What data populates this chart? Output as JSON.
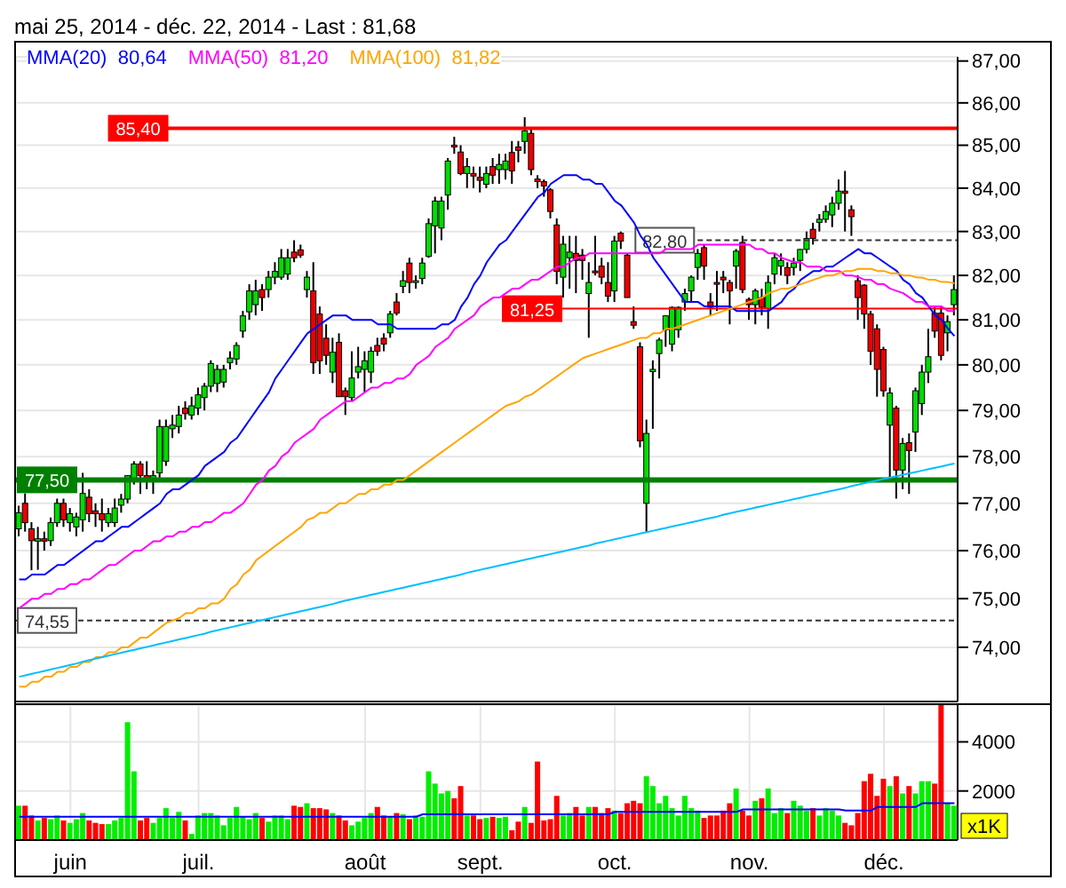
{
  "chart_data": [
    {
      "type": "candlestick",
      "title": "mai 25, 2014 - déc. 22, 2014 - Last : 81,68",
      "categories": [
        null,
        null,
        null,
        null,
        null,
        null,
        null,
        null,
        null,
        null,
        null,
        null,
        null,
        null,
        null,
        null,
        null,
        null,
        null,
        null,
        null,
        null,
        null,
        null,
        null,
        null,
        null,
        null,
        null,
        null,
        null,
        null,
        null,
        null,
        null,
        null,
        null,
        null,
        null,
        null,
        null,
        null,
        null,
        null,
        null,
        null,
        null,
        null,
        null,
        null,
        null,
        null,
        null,
        null,
        null,
        null,
        null,
        null,
        null,
        null,
        null,
        null,
        null,
        null,
        null,
        null,
        null,
        null,
        null,
        null,
        null,
        null,
        null,
        null,
        null,
        null,
        null,
        null,
        null,
        null,
        null,
        null,
        null,
        null,
        null,
        null,
        null,
        null,
        null,
        null,
        null,
        null,
        null,
        null,
        null,
        null,
        null,
        null,
        null,
        null,
        null,
        null,
        null,
        null,
        null,
        null,
        null,
        null,
        null,
        null,
        null,
        null,
        null,
        null,
        null,
        null,
        null,
        null,
        null,
        null,
        null,
        null,
        null,
        null,
        null,
        null,
        null,
        null,
        null,
        null,
        null,
        null,
        null,
        null,
        null,
        null,
        null,
        null,
        null,
        null,
        null,
        null,
        null,
        null,
        null,
        null,
        null
      ],
      "ohlc": [
        [
          76.46,
          76.95,
          76.3,
          76.8
        ],
        [
          77.0,
          77.21,
          76.4,
          76.59
        ],
        [
          76.46,
          76.6,
          75.59,
          76.21
        ],
        [
          76.2,
          76.5,
          75.6,
          76.25
        ],
        [
          76.25,
          76.4,
          76.0,
          76.2
        ],
        [
          76.21,
          76.7,
          76.1,
          76.59
        ],
        [
          76.59,
          77.1,
          76.5,
          77.0
        ],
        [
          77.0,
          77.1,
          76.5,
          76.65
        ],
        [
          76.59,
          76.9,
          76.4,
          76.78
        ],
        [
          76.5,
          76.8,
          76.3,
          76.71
        ],
        [
          76.65,
          77.65,
          76.4,
          77.21
        ],
        [
          77.13,
          77.3,
          76.6,
          76.78
        ],
        [
          76.84,
          77.0,
          76.5,
          76.78
        ],
        [
          76.78,
          77.1,
          76.4,
          76.65
        ],
        [
          76.59,
          76.9,
          76.5,
          76.78
        ],
        [
          76.59,
          77.1,
          76.5,
          76.9
        ],
        [
          76.96,
          77.2,
          76.8,
          77.09
        ],
        [
          77.09,
          77.6,
          77.0,
          77.59
        ],
        [
          77.53,
          77.9,
          77.4,
          77.84
        ],
        [
          77.84,
          77.9,
          77.2,
          77.59
        ],
        [
          77.59,
          77.9,
          77.3,
          77.5
        ],
        [
          77.5,
          77.7,
          77.2,
          77.59
        ],
        [
          77.65,
          78.8,
          77.5,
          78.65
        ],
        [
          77.9,
          78.8,
          77.8,
          78.65
        ],
        [
          78.6,
          78.9,
          78.4,
          78.68
        ],
        [
          78.65,
          79.1,
          78.5,
          78.9
        ],
        [
          79.05,
          79.2,
          78.8,
          78.93
        ],
        [
          78.9,
          79.3,
          78.8,
          79.1
        ],
        [
          79.05,
          79.5,
          78.9,
          79.34
        ],
        [
          79.28,
          79.6,
          79.0,
          79.53
        ],
        [
          79.53,
          80.1,
          79.4,
          80.03
        ],
        [
          79.59,
          80.0,
          79.4,
          79.9
        ],
        [
          79.62,
          80.0,
          79.5,
          79.9
        ],
        [
          80.05,
          80.3,
          79.9,
          80.15
        ],
        [
          80.13,
          80.5,
          80.0,
          80.43
        ],
        [
          80.75,
          81.2,
          80.6,
          81.09
        ],
        [
          81.18,
          81.8,
          81.0,
          81.65
        ],
        [
          81.34,
          81.9,
          81.1,
          81.65
        ],
        [
          81.68,
          81.8,
          81.2,
          81.5
        ],
        [
          81.68,
          82.1,
          81.5,
          81.96
        ],
        [
          81.96,
          82.3,
          81.8,
          82.09
        ],
        [
          81.96,
          82.6,
          81.9,
          82.4
        ],
        [
          82.03,
          82.6,
          81.9,
          82.4
        ],
        [
          82.53,
          82.8,
          82.3,
          82.4
        ],
        [
          82.58,
          82.7,
          82.4,
          82.46
        ],
        [
          81.68,
          82.1,
          81.5,
          81.96
        ],
        [
          81.65,
          82.3,
          79.8,
          80.05
        ],
        [
          81.13,
          81.3,
          79.8,
          80.09
        ],
        [
          80.59,
          80.9,
          80.0,
          80.21
        ],
        [
          79.84,
          80.6,
          79.6,
          80.28
        ],
        [
          80.5,
          80.7,
          79.3,
          79.3
        ],
        [
          79.43,
          79.5,
          78.9,
          79.3
        ],
        [
          79.28,
          80.3,
          79.2,
          79.71
        ],
        [
          79.84,
          80.4,
          79.7,
          79.96
        ],
        [
          79.9,
          80.3,
          79.4,
          80.09
        ],
        [
          79.84,
          80.4,
          79.6,
          80.3
        ],
        [
          80.43,
          80.6,
          80.2,
          80.3
        ],
        [
          80.59,
          80.7,
          80.3,
          80.46
        ],
        [
          80.71,
          81.2,
          80.6,
          81.13
        ],
        [
          81.4,
          81.6,
          81.1,
          81.15
        ],
        [
          81.75,
          82.1,
          81.6,
          81.88
        ],
        [
          82.28,
          82.4,
          81.6,
          81.84
        ],
        [
          81.84,
          82.0,
          81.7,
          81.88
        ],
        [
          81.93,
          82.4,
          81.8,
          82.28
        ],
        [
          82.43,
          83.3,
          82.4,
          83.18
        ],
        [
          83.13,
          83.8,
          82.5,
          83.7
        ],
        [
          83.08,
          83.8,
          82.8,
          83.7
        ],
        [
          83.84,
          84.7,
          83.5,
          84.63
        ],
        [
          85.0,
          85.2,
          84.8,
          84.96
        ],
        [
          84.84,
          85.0,
          84.3,
          84.34
        ],
        [
          84.34,
          84.7,
          84.0,
          84.5
        ],
        [
          84.34,
          84.5,
          84.0,
          84.28
        ],
        [
          84.25,
          84.5,
          83.9,
          84.18
        ],
        [
          84.09,
          84.5,
          84.0,
          84.34
        ],
        [
          84.5,
          84.7,
          84.1,
          84.3
        ],
        [
          84.43,
          84.8,
          84.1,
          84.55
        ],
        [
          84.43,
          84.8,
          84.2,
          84.63
        ],
        [
          84.83,
          85.1,
          84.1,
          84.4
        ],
        [
          84.96,
          85.1,
          84.6,
          84.88
        ],
        [
          85.09,
          85.66,
          84.8,
          85.34
        ],
        [
          85.28,
          85.4,
          84.3,
          84.43
        ],
        [
          84.21,
          84.3,
          84.0,
          84.15
        ],
        [
          84.15,
          84.2,
          83.8,
          84.05
        ],
        [
          83.96,
          84.0,
          83.3,
          83.46
        ],
        [
          83.15,
          83.3,
          81.8,
          82.09
        ],
        [
          81.96,
          82.9,
          81.5,
          82.71
        ],
        [
          82.4,
          82.9,
          81.7,
          82.53
        ],
        [
          82.5,
          82.9,
          81.6,
          82.34
        ],
        [
          82.46,
          82.6,
          81.9,
          82.34
        ],
        [
          81.59,
          82.3,
          80.6,
          81.84
        ],
        [
          82.1,
          82.9,
          82.0,
          82.09
        ],
        [
          82.21,
          82.4,
          81.8,
          81.96
        ],
        [
          81.84,
          82.3,
          81.4,
          81.53
        ],
        [
          81.65,
          82.9,
          81.4,
          82.78
        ],
        [
          82.96,
          83.0,
          82.6,
          82.78
        ],
        [
          82.46,
          82.5,
          81.5,
          81.5
        ],
        [
          80.96,
          81.3,
          80.8,
          80.88
        ],
        [
          80.4,
          80.5,
          78.2,
          78.34
        ],
        [
          77.0,
          78.8,
          76.4,
          78.5
        ],
        [
          79.85,
          80.1,
          78.6,
          79.9
        ],
        [
          80.25,
          80.6,
          79.7,
          80.55
        ],
        [
          80.78,
          81.1,
          80.4,
          81.09
        ],
        [
          80.46,
          81.3,
          80.3,
          81.28
        ],
        [
          80.78,
          81.3,
          80.6,
          81.28
        ],
        [
          81.4,
          81.7,
          81.2,
          81.59
        ],
        [
          81.65,
          82.0,
          81.4,
          81.96
        ],
        [
          82.18,
          82.6,
          81.9,
          82.5
        ],
        [
          82.63,
          82.7,
          81.9,
          82.21
        ],
        [
          81.4,
          81.6,
          81.1,
          81.28
        ],
        [
          81.84,
          82.1,
          81.2,
          81.8
        ],
        [
          81.96,
          82.1,
          81.6,
          81.9
        ],
        [
          81.84,
          81.9,
          80.9,
          81.65
        ],
        [
          82.21,
          82.6,
          81.7,
          82.55
        ],
        [
          82.75,
          82.9,
          81.6,
          81.68
        ],
        [
          81.46,
          81.5,
          81.0,
          81.34
        ],
        [
          81.34,
          81.7,
          80.9,
          81.65
        ],
        [
          81.5,
          81.7,
          81.1,
          81.28
        ],
        [
          81.25,
          82.0,
          80.8,
          81.84
        ],
        [
          82.03,
          82.5,
          81.8,
          82.4
        ],
        [
          82.21,
          82.5,
          82.0,
          82.34
        ],
        [
          82.18,
          82.3,
          81.8,
          82.0
        ],
        [
          82.18,
          82.4,
          82.0,
          82.28
        ],
        [
          82.34,
          82.6,
          82.1,
          82.59
        ],
        [
          82.59,
          83.0,
          82.5,
          82.84
        ],
        [
          83.05,
          83.2,
          82.7,
          82.84
        ],
        [
          83.21,
          83.4,
          83.0,
          83.28
        ],
        [
          83.28,
          83.6,
          83.2,
          83.46
        ],
        [
          83.38,
          83.8,
          83.1,
          83.65
        ],
        [
          83.65,
          84.2,
          83.5,
          83.93
        ],
        [
          83.93,
          84.4,
          83.0,
          83.88
        ],
        [
          83.5,
          83.6,
          82.9,
          83.34
        ],
        [
          81.88,
          82.0,
          81.0,
          81.5
        ],
        [
          81.78,
          81.8,
          80.8,
          81.13
        ],
        [
          81.13,
          81.2,
          80.0,
          80.3
        ],
        [
          80.8,
          80.9,
          79.3,
          79.9
        ],
        [
          80.34,
          80.4,
          79.3,
          79.43
        ],
        [
          78.68,
          79.5,
          77.5,
          79.38
        ],
        [
          79.05,
          79.1,
          77.1,
          77.71
        ],
        [
          77.71,
          78.4,
          77.3,
          78.28
        ],
        [
          78.3,
          78.5,
          77.2,
          78.13
        ],
        [
          78.53,
          79.5,
          78.1,
          79.43
        ],
        [
          79.15,
          80.0,
          78.9,
          79.84
        ],
        [
          79.84,
          80.8,
          79.6,
          80.18
        ],
        [
          81.15,
          81.3,
          80.6,
          80.75
        ],
        [
          81.15,
          81.3,
          80.1,
          80.21
        ],
        [
          80.71,
          81.1,
          80.3,
          80.96
        ],
        [
          81.34,
          82.0,
          81.1,
          81.68
        ]
      ],
      "series": [
        {
          "type": "line",
          "name": "MMA(20)  80,64",
          "color": "#0000ff",
          "values": [
            75.4,
            75.4,
            75.5,
            75.5,
            75.5,
            75.6,
            75.7,
            75.7,
            75.8,
            75.9,
            76.0,
            76.1,
            76.2,
            76.2,
            76.3,
            76.4,
            76.5,
            76.5,
            76.6,
            76.7,
            76.8,
            76.9,
            77.0,
            77.2,
            77.3,
            77.3,
            77.4,
            77.5,
            77.6,
            77.8,
            77.9,
            78.0,
            78.1,
            78.3,
            78.4,
            78.6,
            78.8,
            79.0,
            79.2,
            79.4,
            79.7,
            79.9,
            80.1,
            80.3,
            80.5,
            80.7,
            80.8,
            80.9,
            81.0,
            81.1,
            81.1,
            81.1,
            81.0,
            81.0,
            81.0,
            81.0,
            80.9,
            80.9,
            80.9,
            80.8,
            80.8,
            80.8,
            80.8,
            80.8,
            80.8,
            80.8,
            80.9,
            80.9,
            81.0,
            81.3,
            81.5,
            81.8,
            82.0,
            82.3,
            82.5,
            82.7,
            82.8,
            83.0,
            83.2,
            83.4,
            83.6,
            83.8,
            83.9,
            84.1,
            84.2,
            84.3,
            84.3,
            84.3,
            84.2,
            84.2,
            84.1,
            84.1,
            83.9,
            83.7,
            83.6,
            83.4,
            83.2,
            82.9,
            82.7,
            82.4,
            82.2,
            82.0,
            81.8,
            81.6,
            81.4,
            81.4,
            81.4,
            81.3,
            81.3,
            81.3,
            81.3,
            81.3,
            81.2,
            81.2,
            81.2,
            81.2,
            81.2,
            81.2,
            81.3,
            81.4,
            81.6,
            81.7,
            81.9,
            82.0,
            82.1,
            82.1,
            82.2,
            82.2,
            82.3,
            82.4,
            82.5,
            82.6,
            82.5,
            82.5,
            82.4,
            82.3,
            82.2,
            82.1,
            81.9,
            81.8,
            81.6,
            81.5,
            81.3,
            81.1,
            81.0,
            80.8,
            80.64
          ]
        },
        {
          "type": "line",
          "name": "MMA(50)  81,20",
          "color": "#ff00ff",
          "values": [
            74.8,
            74.9,
            75.0,
            75.0,
            75.1,
            75.1,
            75.2,
            75.2,
            75.3,
            75.3,
            75.4,
            75.4,
            75.5,
            75.6,
            75.7,
            75.7,
            75.8,
            75.9,
            76.0,
            76.0,
            76.1,
            76.2,
            76.2,
            76.3,
            76.3,
            76.4,
            76.4,
            76.5,
            76.5,
            76.6,
            76.6,
            76.7,
            76.8,
            76.8,
            76.9,
            77.0,
            77.2,
            77.4,
            77.5,
            77.7,
            77.8,
            78.0,
            78.1,
            78.3,
            78.4,
            78.5,
            78.6,
            78.8,
            78.9,
            79.0,
            79.1,
            79.2,
            79.2,
            79.3,
            79.4,
            79.5,
            79.5,
            79.6,
            79.6,
            79.7,
            79.7,
            79.8,
            80.0,
            80.1,
            80.2,
            80.4,
            80.5,
            80.6,
            80.8,
            80.9,
            81.0,
            81.1,
            81.3,
            81.4,
            81.5,
            81.5,
            81.6,
            81.7,
            81.7,
            81.8,
            81.9,
            81.9,
            82.0,
            82.1,
            82.2,
            82.2,
            82.3,
            82.4,
            82.4,
            82.5,
            82.5,
            82.5,
            82.5,
            82.5,
            82.5,
            82.5,
            82.5,
            82.5,
            82.5,
            82.5,
            82.5,
            82.6,
            82.6,
            82.6,
            82.6,
            82.6,
            82.7,
            82.7,
            82.7,
            82.7,
            82.7,
            82.7,
            82.7,
            82.7,
            82.7,
            82.6,
            82.6,
            82.5,
            82.5,
            82.4,
            82.35,
            82.3,
            82.3,
            82.2,
            82.2,
            82.2,
            82.1,
            82.1,
            82.1,
            82.0,
            82.0,
            81.96,
            81.9,
            81.9,
            81.8,
            81.8,
            81.7,
            81.65,
            81.6,
            81.5,
            81.4,
            81.4,
            81.3,
            81.3,
            81.3,
            81.2,
            81.2
          ]
        },
        {
          "type": "line",
          "name": "MMA(100)  81,82",
          "color": "#ffa500",
          "values": [
            73.2,
            73.2,
            73.3,
            73.3,
            73.4,
            73.4,
            73.5,
            73.5,
            73.6,
            73.6,
            73.7,
            73.7,
            73.8,
            73.8,
            73.9,
            73.9,
            74.0,
            74.0,
            74.1,
            74.2,
            74.2,
            74.3,
            74.4,
            74.5,
            74.55,
            74.6,
            74.7,
            74.7,
            74.8,
            74.8,
            74.9,
            74.9,
            75.0,
            75.2,
            75.3,
            75.5,
            75.6,
            75.8,
            75.9,
            76.0,
            76.1,
            76.2,
            76.3,
            76.4,
            76.5,
            76.65,
            76.7,
            76.8,
            76.8,
            76.9,
            77.0,
            77.0,
            77.1,
            77.2,
            77.2,
            77.3,
            77.3,
            77.4,
            77.4,
            77.5,
            77.5,
            77.6,
            77.7,
            77.8,
            77.9,
            78.0,
            78.1,
            78.2,
            78.3,
            78.4,
            78.5,
            78.6,
            78.7,
            78.8,
            78.9,
            79.0,
            79.1,
            79.15,
            79.2,
            79.3,
            79.35,
            79.45,
            79.55,
            79.65,
            79.75,
            79.85,
            79.95,
            80.05,
            80.15,
            80.2,
            80.25,
            80.3,
            80.35,
            80.4,
            80.45,
            80.5,
            80.55,
            80.6,
            80.6,
            80.7,
            80.7,
            80.8,
            80.8,
            80.85,
            80.9,
            80.95,
            81.0,
            81.05,
            81.1,
            81.15,
            81.2,
            81.25,
            81.3,
            81.35,
            81.4,
            81.45,
            81.5,
            81.6,
            81.65,
            81.7,
            81.7,
            81.75,
            81.8,
            81.85,
            81.9,
            81.95,
            82.0,
            82.0,
            82.05,
            82.1,
            82.1,
            82.15,
            82.15,
            82.15,
            82.1,
            82.1,
            82.05,
            82.05,
            82.0,
            82.0,
            81.96,
            81.95,
            81.9,
            81.9,
            81.85,
            81.85,
            81.82
          ]
        },
        {
          "type": "line",
          "color": "#00bfff",
          "values": [
            73.4,
            73.43,
            73.46,
            73.49,
            73.52,
            73.55,
            73.58,
            73.61,
            73.64,
            73.67,
            73.71,
            73.74,
            73.77,
            73.8,
            73.83,
            73.86,
            73.89,
            73.92,
            73.95,
            73.98,
            74.01,
            74.04,
            74.07,
            74.1,
            74.13,
            74.16,
            74.19,
            74.22,
            74.25,
            74.28,
            74.32,
            74.35,
            74.38,
            74.41,
            74.44,
            74.47,
            74.5,
            74.53,
            74.56,
            74.59,
            74.62,
            74.65,
            74.68,
            74.71,
            74.74,
            74.77,
            74.8,
            74.83,
            74.86,
            74.89,
            74.93,
            74.96,
            74.99,
            75.02,
            75.05,
            75.08,
            75.11,
            75.14,
            75.17,
            75.2,
            75.23,
            75.26,
            75.29,
            75.32,
            75.35,
            75.38,
            75.41,
            75.44,
            75.47,
            75.5,
            75.54,
            75.57,
            75.6,
            75.63,
            75.66,
            75.69,
            75.72,
            75.75,
            75.78,
            75.81,
            75.84,
            75.87,
            75.9,
            75.93,
            75.96,
            75.99,
            76.02,
            76.05,
            76.08,
            76.11,
            76.15,
            76.18,
            76.21,
            76.24,
            76.27,
            76.3,
            76.33,
            76.36,
            76.39,
            76.42,
            76.45,
            76.48,
            76.51,
            76.54,
            76.57,
            76.6,
            76.63,
            76.66,
            76.69,
            76.72,
            76.76,
            76.79,
            76.82,
            76.85,
            76.88,
            76.91,
            76.94,
            76.97,
            77.0,
            77.03,
            77.06,
            77.09,
            77.12,
            77.15,
            77.18,
            77.21,
            77.24,
            77.27,
            77.3,
            77.33,
            77.37,
            77.4,
            77.43,
            77.46,
            77.49,
            77.52,
            77.55,
            77.58,
            77.61,
            77.64,
            77.67,
            77.7,
            77.73,
            77.76,
            77.79,
            77.82,
            77.85
          ]
        }
      ],
      "ylim": [
        72.9,
        87.1
      ],
      "yticks": [
        {
          "value": 74,
          "label": "74,00"
        },
        {
          "value": 75,
          "label": "75,00"
        },
        {
          "value": 76,
          "label": "76,00"
        },
        {
          "value": 77,
          "label": "77,00"
        },
        {
          "value": 78,
          "label": "78,00"
        },
        {
          "value": 79,
          "label": "79,00"
        },
        {
          "value": 80,
          "label": "80,00"
        },
        {
          "value": 81,
          "label": "81,00"
        },
        {
          "value": 82,
          "label": "82,00"
        },
        {
          "value": 83,
          "label": "83,00"
        },
        {
          "value": 84,
          "label": "84,00"
        },
        {
          "value": 85,
          "label": "85,00"
        },
        {
          "value": 86,
          "label": "86,00"
        },
        {
          "value": 87,
          "label": "87,00"
        }
      ],
      "log": true,
      "grid": true,
      "legend": "top left",
      "tick_labels": "y",
      "ref_lines": [
        {
          "axis": "y",
          "value": 85.4,
          "label": "85,40",
          "color": "#ff0000"
        },
        {
          "axis": "y",
          "value": 82.8,
          "label": "82,80",
          "color": "#333333",
          "line_style": "dashed"
        },
        {
          "axis": "y",
          "value": 81.25,
          "label": "81,25",
          "color": "#ff0000"
        },
        {
          "axis": "y",
          "value": 77.5,
          "label": "77,50",
          "color": "#008000"
        },
        {
          "axis": "y",
          "value": 74.55,
          "label": "74,55",
          "color": "#333333",
          "line_style": "dashed"
        }
      ]
    },
    {
      "type": "bar",
      "ylabel": "x1K",
      "categories": [
        null,
        null,
        null,
        null,
        null,
        null,
        null,
        null,
        "juin",
        null,
        null,
        null,
        null,
        null,
        null,
        null,
        null,
        null,
        null,
        null,
        null,
        null,
        null,
        null,
        null,
        null,
        null,
        null,
        "juil.",
        null,
        null,
        null,
        null,
        null,
        null,
        null,
        null,
        null,
        null,
        null,
        null,
        null,
        null,
        null,
        null,
        null,
        null,
        null,
        null,
        null,
        null,
        null,
        null,
        null,
        "août",
        null,
        null,
        null,
        null,
        null,
        null,
        null,
        null,
        null,
        null,
        null,
        null,
        null,
        null,
        null,
        null,
        null,
        "sept.",
        null,
        null,
        null,
        null,
        null,
        null,
        null,
        null,
        null,
        null,
        null,
        null,
        null,
        null,
        null,
        null,
        null,
        null,
        null,
        null,
        "oct.",
        null,
        null,
        null,
        null,
        null,
        null,
        null,
        null,
        null,
        null,
        null,
        null,
        null,
        null,
        null,
        null,
        null,
        null,
        null,
        null,
        "nov.",
        null,
        null,
        null,
        null,
        null,
        null,
        null,
        null,
        null,
        null,
        null,
        null,
        null,
        null,
        null,
        null,
        null,
        null,
        null,
        null,
        "déc.",
        null,
        null,
        null,
        null,
        null,
        null,
        null,
        null,
        null,
        null,
        null
      ],
      "series": [
        {
          "values": [
            1400,
            1400,
            1000,
            800,
            900,
            850,
            1000,
            800,
            700,
            850,
            1100,
            800,
            700,
            650,
            650,
            800,
            900,
            4800,
            2800,
            800,
            900,
            700,
            900,
            1300,
            900,
            1150,
            800,
            250,
            1000,
            1100,
            1100,
            1000,
            600,
            900,
            1350,
            950,
            850,
            1100,
            900,
            750,
            1000,
            1000,
            850,
            1400,
            1350,
            1500,
            1300,
            1300,
            1250,
            1100,
            1000,
            800,
            600,
            750,
            900,
            1100,
            1350,
            1000,
            950,
            1100,
            1050,
            850,
            1000,
            950,
            2800,
            2300,
            1900,
            2000,
            1700,
            2200,
            1000,
            1000,
            850,
            900,
            950,
            900,
            950,
            400,
            750,
            1350,
            700,
            3200,
            800,
            850,
            1800,
            1000,
            1100,
            1350,
            1000,
            1350,
            1350,
            1100,
            1300,
            1200,
            1100,
            1500,
            1600,
            1500,
            2600,
            2200,
            1500,
            1800,
            1300,
            1000,
            1800,
            1300,
            1200,
            900,
            1000,
            1000,
            1200,
            1500,
            2100,
            1200,
            1000,
            1600,
            1700,
            2100,
            1100,
            1300,
            1100,
            1600,
            1400,
            1200,
            1300,
            1000,
            1300,
            1200,
            1000,
            700,
            600,
            1100,
            2400,
            2700,
            1800,
            2500,
            2200,
            2600,
            1900,
            2200,
            1900,
            2400,
            2400,
            2300,
            5500,
            1500,
            1400
          ],
          "colors": [
            "#00ee00",
            "#ff0000",
            "#ff0000",
            "#00ee00",
            "#ff0000",
            "#00ee00",
            "#00ee00",
            "#ff0000",
            "#00ee00",
            "#00ee00",
            "#00ee00",
            "#ff0000",
            "#ff0000",
            "#ff0000",
            "#00ee00",
            "#00ee00",
            "#00ee00",
            "#00ee00",
            "#00ee00",
            "#ff0000",
            "#ff0000",
            "#00ee00",
            "#00ee00",
            "#00ee00",
            "#00ee00",
            "#00ee00",
            "#ff0000",
            "#00ee00",
            "#00ee00",
            "#00ee00",
            "#00ee00",
            "#00ee00",
            "#00ee00",
            "#00ee00",
            "#00ee00",
            "#00ee00",
            "#00ee00",
            "#00ee00",
            "#ff0000",
            "#00ee00",
            "#00ee00",
            "#00ee00",
            "#00ee00",
            "#ff0000",
            "#ff0000",
            "#00ee00",
            "#ff0000",
            "#ff0000",
            "#ff0000",
            "#00ee00",
            "#ff0000",
            "#ff0000",
            "#00ee00",
            "#00ee00",
            "#00ee00",
            "#00ee00",
            "#ff0000",
            "#ff0000",
            "#00ee00",
            "#ff0000",
            "#00ee00",
            "#ff0000",
            "#00ee00",
            "#00ee00",
            "#00ee00",
            "#00ee00",
            "#00ee00",
            "#00ee00",
            "#ff0000",
            "#ff0000",
            "#00ee00",
            "#ff0000",
            "#ff0000",
            "#00ee00",
            "#ff0000",
            "#00ee00",
            "#00ee00",
            "#ff0000",
            "#ff0000",
            "#00ee00",
            "#ff0000",
            "#ff0000",
            "#ff0000",
            "#ff0000",
            "#ff0000",
            "#00ee00",
            "#00ee00",
            "#ff0000",
            "#ff0000",
            "#00ee00",
            "#ff0000",
            "#ff0000",
            "#ff0000",
            "#00ee00",
            "#ff0000",
            "#ff0000",
            "#ff0000",
            "#ff0000",
            "#00ee00",
            "#00ee00",
            "#00ee00",
            "#00ee00",
            "#00ee00",
            "#00ee00",
            "#00ee00",
            "#00ee00",
            "#00ee00",
            "#ff0000",
            "#ff0000",
            "#ff0000",
            "#ff0000",
            "#ff0000",
            "#00ee00",
            "#ff0000",
            "#ff0000",
            "#00ee00",
            "#ff0000",
            "#00ee00",
            "#00ee00",
            "#00ee00",
            "#ff0000",
            "#00ee00",
            "#00ee00",
            "#00ee00",
            "#ff0000",
            "#00ee00",
            "#00ee00",
            "#00ee00",
            "#00ee00",
            "#ff0000",
            "#ff0000",
            "#ff0000",
            "#ff0000",
            "#ff0000",
            "#ff0000",
            "#ff0000",
            "#00ee00",
            "#ff0000",
            "#00ee00",
            "#ff0000",
            "#00ee00",
            "#00ee00",
            "#00ee00",
            "#ff0000",
            "#ff0000",
            "#00ee00",
            "#00ee00"
          ]
        },
        {
          "type": "line",
          "color": "#0000ff",
          "values": [
            950,
            950,
            950,
            950,
            950,
            950,
            950,
            950,
            950,
            950,
            950,
            950,
            950,
            950,
            950,
            950,
            950,
            950,
            950,
            950,
            950,
            950,
            950,
            950,
            950,
            950,
            950,
            950,
            950,
            950,
            950,
            950,
            950,
            950,
            950,
            950,
            950,
            950,
            950,
            950,
            950,
            950,
            950,
            950,
            950,
            950,
            950,
            950,
            950,
            950,
            950,
            950,
            950,
            950,
            950,
            950,
            950,
            950,
            950,
            950,
            950,
            950,
            950,
            1050,
            1050,
            1050,
            1050,
            1050,
            1050,
            1050,
            1050,
            1050,
            1050,
            1050,
            1050,
            1050,
            1050,
            1050,
            1050,
            1050,
            1050,
            1050,
            1050,
            1050,
            1050,
            1050,
            1050,
            1050,
            1050,
            1050,
            1050,
            1050,
            1050,
            1150,
            1150,
            1150,
            1150,
            1150,
            1150,
            1150,
            1150,
            1150,
            1150,
            1150,
            1150,
            1150,
            1150,
            1150,
            1150,
            1150,
            1150,
            1150,
            1150,
            1250,
            1250,
            1250,
            1250,
            1250,
            1250,
            1250,
            1250,
            1250,
            1250,
            1250,
            1250,
            1250,
            1250,
            1250,
            1250,
            1200,
            1200,
            1200,
            1200,
            1200,
            1350,
            1350,
            1350,
            1350,
            1350,
            1350,
            1350,
            1500,
            1500,
            1500,
            1500,
            1500,
            1500
          ]
        }
      ],
      "ylim": [
        0,
        5500
      ],
      "yticks": [
        2000,
        4000
      ],
      "grid": true
    }
  ]
}
